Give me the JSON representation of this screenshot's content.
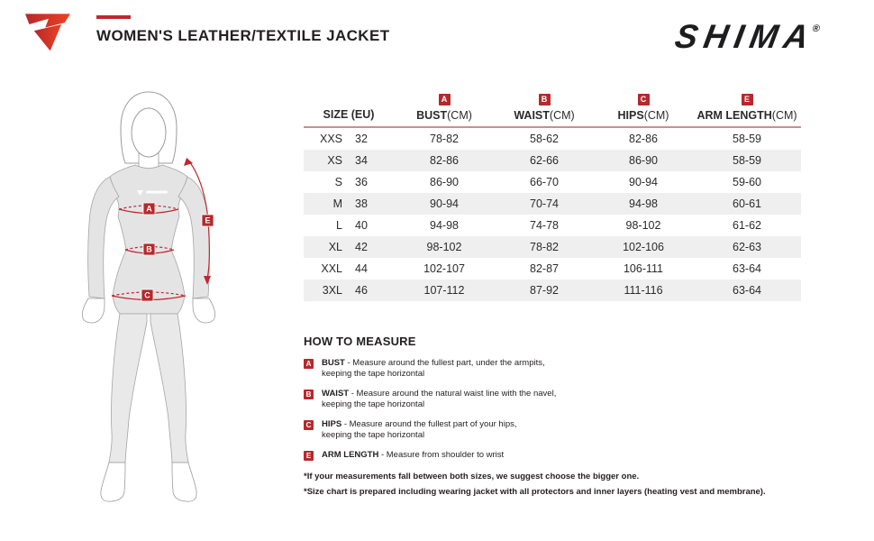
{
  "header": {
    "title": "WOMEN'S LEATHER/TEXTILE JACKET",
    "brand": "SHIMA",
    "registered": "®"
  },
  "colors": {
    "accent_red": "#c1272d",
    "badge_red": "#b5292c",
    "row_alt": "#efefef",
    "table_underline": "#c98f8d"
  },
  "figure": {
    "markers": {
      "bust": "A",
      "waist": "B",
      "hips": "C",
      "arm": "E"
    }
  },
  "table": {
    "size_header": "SIZE (EU)",
    "columns": [
      {
        "badge": "A",
        "label": "BUST",
        "unit": "(CM)"
      },
      {
        "badge": "B",
        "label": "WAIST",
        "unit": "(CM)"
      },
      {
        "badge": "C",
        "label": "HIPS",
        "unit": "(CM)"
      },
      {
        "badge": "E",
        "label": "ARM LENGTH",
        "unit": "(CM)"
      }
    ],
    "rows": [
      {
        "size": "XXS",
        "eu": "32",
        "bust": "78-82",
        "waist": "58-62",
        "hips": "82-86",
        "arm": "58-59"
      },
      {
        "size": "XS",
        "eu": "34",
        "bust": "82-86",
        "waist": "62-66",
        "hips": "86-90",
        "arm": "58-59"
      },
      {
        "size": "S",
        "eu": "36",
        "bust": "86-90",
        "waist": "66-70",
        "hips": "90-94",
        "arm": "59-60"
      },
      {
        "size": "M",
        "eu": "38",
        "bust": "90-94",
        "waist": "70-74",
        "hips": "94-98",
        "arm": "60-61"
      },
      {
        "size": "L",
        "eu": "40",
        "bust": "94-98",
        "waist": "74-78",
        "hips": "98-102",
        "arm": "61-62"
      },
      {
        "size": "XL",
        "eu": "42",
        "bust": "98-102",
        "waist": "78-82",
        "hips": "102-106",
        "arm": "62-63"
      },
      {
        "size": "XXL",
        "eu": "44",
        "bust": "102-107",
        "waist": "82-87",
        "hips": "106-111",
        "arm": "63-64"
      },
      {
        "size": "3XL",
        "eu": "46",
        "bust": "107-112",
        "waist": "87-92",
        "hips": "111-116",
        "arm": "63-64"
      }
    ]
  },
  "how_to_measure": {
    "heading": "HOW TO MEASURE",
    "items": [
      {
        "badge": "A",
        "label": "BUST",
        "line1": "- Measure around the fullest part, under the armpits,",
        "line2": "keeping the tape horizontal"
      },
      {
        "badge": "B",
        "label": "WAIST",
        "line1": "- Measure around the natural waist line with the navel,",
        "line2": "keeping the tape horizontal"
      },
      {
        "badge": "C",
        "label": "HIPS",
        "line1": "- Measure around the fullest part of your hips,",
        "line2": "keeping the tape horizontal"
      },
      {
        "badge": "E",
        "label": "ARM LENGTH",
        "line1": "- Measure from shoulder to wrist",
        "line2": ""
      }
    ],
    "notes": [
      "*If your measurements fall between both sizes, we suggest choose the bigger one.",
      "*Size chart is prepared including wearing jacket with all protectors and inner layers (heating vest and membrane)."
    ]
  }
}
